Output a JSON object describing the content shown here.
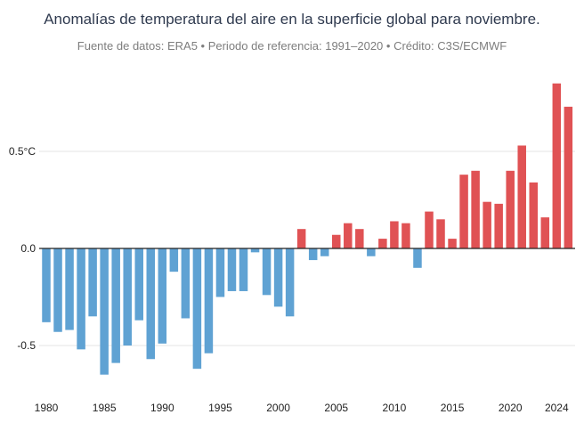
{
  "chart_data": {
    "type": "bar",
    "title": "Anomalías de temperatura del aire en la superficie global para noviembre.",
    "subtitle": "Fuente de datos: ERA5 • Periodo de referencia: 1991–2020 • Crédito: C3S/ECMWF",
    "xlabel": "",
    "ylabel": "",
    "x": [
      1980,
      1981,
      1982,
      1983,
      1984,
      1985,
      1986,
      1987,
      1988,
      1989,
      1990,
      1991,
      1992,
      1993,
      1994,
      1995,
      1996,
      1997,
      1998,
      1999,
      2000,
      2001,
      2002,
      2003,
      2004,
      2005,
      2006,
      2007,
      2008,
      2009,
      2010,
      2011,
      2012,
      2013,
      2014,
      2015,
      2016,
      2017,
      2018,
      2019,
      2020,
      2021,
      2022,
      2023,
      2024,
      2025
    ],
    "values": [
      -0.38,
      -0.43,
      -0.42,
      -0.52,
      -0.35,
      -0.65,
      -0.59,
      -0.5,
      -0.37,
      -0.57,
      -0.49,
      -0.12,
      -0.36,
      -0.62,
      -0.54,
      -0.25,
      -0.22,
      -0.22,
      -0.02,
      -0.24,
      -0.3,
      -0.35,
      0.1,
      -0.06,
      -0.04,
      0.07,
      0.13,
      0.1,
      -0.04,
      0.05,
      0.14,
      0.13,
      -0.1,
      0.19,
      0.15,
      0.05,
      0.38,
      0.4,
      0.24,
      0.23,
      0.4,
      0.53,
      0.34,
      0.16,
      0.85,
      0.73
    ],
    "ylim": [
      -0.78,
      0.9
    ],
    "yticks": [
      0.5,
      0.0,
      -0.5
    ],
    "ytick_labels": [
      "0.5°C",
      "0.0",
      "-0.5"
    ],
    "xticks": [
      1980,
      1985,
      1990,
      1995,
      2000,
      2005,
      2010,
      2015,
      2020,
      2024
    ],
    "xtick_labels": [
      "1980",
      "1985",
      "1990",
      "1995",
      "2000",
      "2005",
      "2010",
      "2015",
      "2020",
      "2024"
    ],
    "grid": true,
    "colors": {
      "positive": "#e05254",
      "negative": "#5fa2d3",
      "grid": "#e6e6e6",
      "zero_line": "#222222"
    }
  }
}
